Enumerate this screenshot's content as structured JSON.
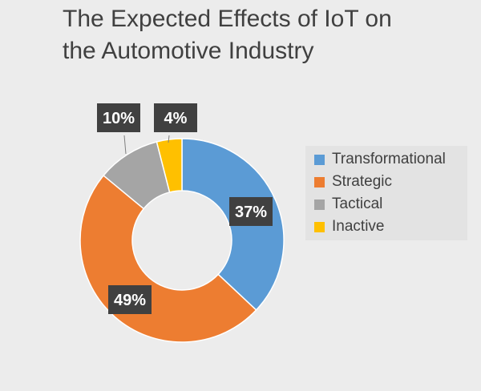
{
  "chart_data": {
    "type": "pie",
    "donut": true,
    "title_lines": [
      "The Expected Effects of IoT on",
      "the Automotive Industry"
    ],
    "categories": [
      "Transformational",
      "Strategic",
      "Tactical",
      "Inactive"
    ],
    "values": [
      37,
      49,
      10,
      4
    ],
    "labels": [
      "37%",
      "49%",
      "10%",
      "4%"
    ],
    "colors": [
      "#5b9bd5",
      "#ed7d31",
      "#a5a5a5",
      "#ffc000"
    ],
    "legend_position": "right"
  }
}
